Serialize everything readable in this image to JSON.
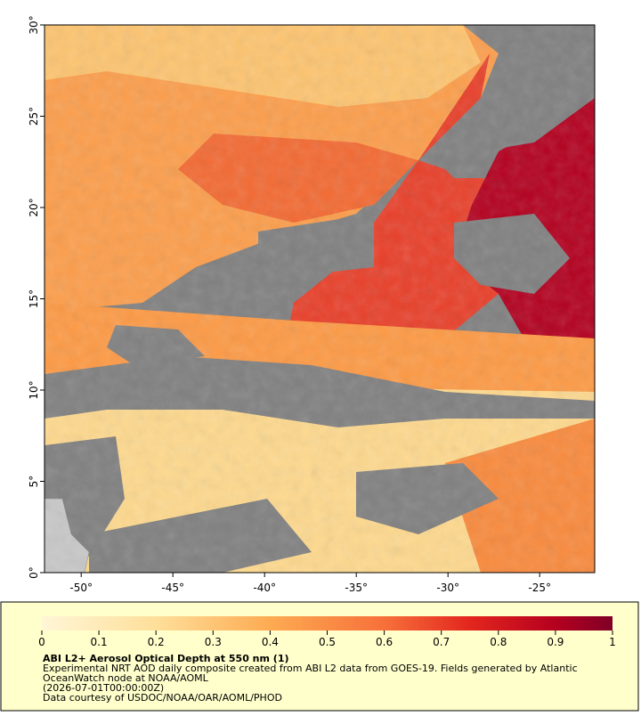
{
  "map": {
    "xlim": [
      -52,
      -22
    ],
    "ylim": [
      0,
      30
    ],
    "xticks": [
      {
        "value": -50,
        "label": "-50°"
      },
      {
        "value": -45,
        "label": "-45°"
      },
      {
        "value": -40,
        "label": "-40°"
      },
      {
        "value": -35,
        "label": "-35°"
      },
      {
        "value": -30,
        "label": "-30°"
      },
      {
        "value": -25,
        "label": "-25°"
      }
    ],
    "yticks": [
      {
        "value": 0,
        "label": "0°"
      },
      {
        "value": 5,
        "label": "5°"
      },
      {
        "value": 10,
        "label": "10°"
      },
      {
        "value": 15,
        "label": "15°"
      },
      {
        "value": 20,
        "label": "20°"
      },
      {
        "value": 25,
        "label": "25°"
      },
      {
        "value": 30,
        "label": "30°"
      }
    ]
  },
  "colorbar": {
    "lim": [
      0,
      1
    ],
    "ticks": [
      0,
      0.1,
      0.2,
      0.3,
      0.4,
      0.5,
      0.6,
      0.7,
      0.8,
      0.9,
      1
    ]
  },
  "caption": {
    "title": "ABI L2+ Aerosol Optical Depth at 550 nm (1)",
    "lines": [
      "Experimental NRT AOD daily composite created from ABI L2 data from GOES-19. Fields generated by Atlantic",
      "OceanWatch node at NOAA/AOML",
      "(2026-07-01T00:00:00Z)",
      "Data courtesy of USDOC/NOAA/OAR/AOML/PHOD"
    ]
  }
}
